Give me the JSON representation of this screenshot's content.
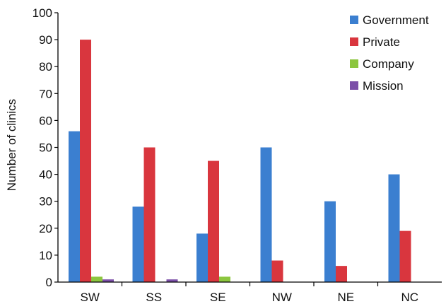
{
  "chart_data": {
    "type": "bar",
    "title": "",
    "xlabel": "",
    "ylabel": "Number of clinics",
    "ylim": [
      0,
      100
    ],
    "yticks": [
      0,
      10,
      20,
      30,
      40,
      50,
      60,
      70,
      80,
      90,
      100
    ],
    "categories": [
      "SW",
      "SS",
      "SE",
      "NW",
      "NE",
      "NC"
    ],
    "series": [
      {
        "name": "Government",
        "color": "#3b7fd0",
        "values": [
          56,
          28,
          18,
          50,
          30,
          40
        ]
      },
      {
        "name": "Private",
        "color": "#d9363e",
        "values": [
          90,
          50,
          45,
          8,
          6,
          19
        ]
      },
      {
        "name": "Company",
        "color": "#8cc63f",
        "values": [
          2,
          0,
          2,
          0,
          0,
          0
        ]
      },
      {
        "name": "Mission",
        "color": "#7b4fa8",
        "values": [
          1,
          1,
          0,
          0,
          0,
          0
        ]
      }
    ],
    "grid": false,
    "legend_position": "top-right"
  }
}
